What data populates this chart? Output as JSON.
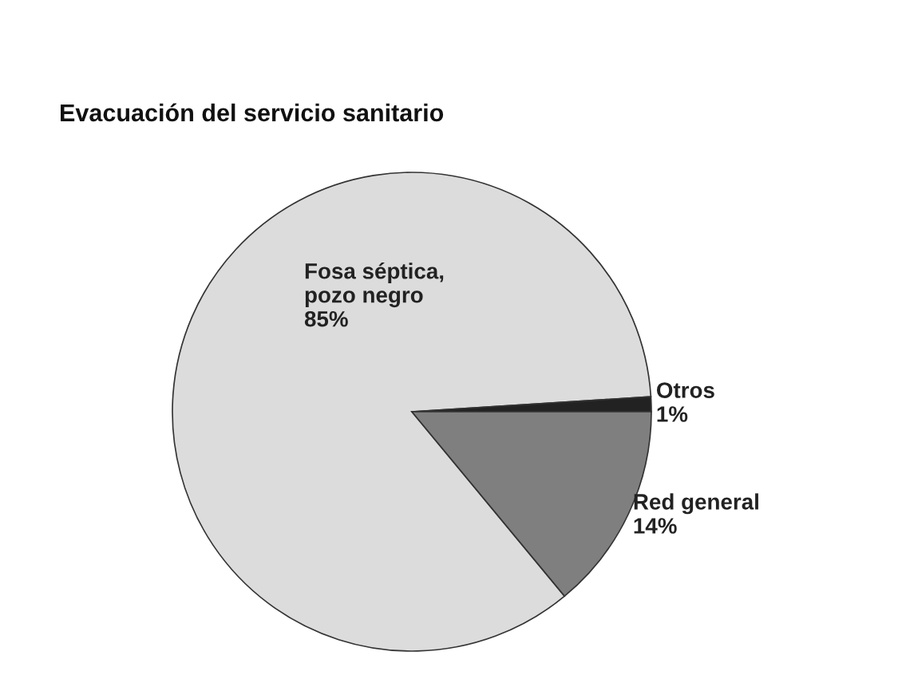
{
  "chart_data": {
    "type": "pie",
    "title": "Evacuación del servicio sanitario",
    "categories": [
      "Fosa séptica,\npozo negro",
      "Otros",
      "Red general"
    ],
    "values": [
      85,
      1,
      14
    ],
    "value_labels": [
      "85%",
      "1%",
      "14%"
    ],
    "colors": [
      "#dcdcdc",
      "#222222",
      "#7f7f7f"
    ]
  }
}
